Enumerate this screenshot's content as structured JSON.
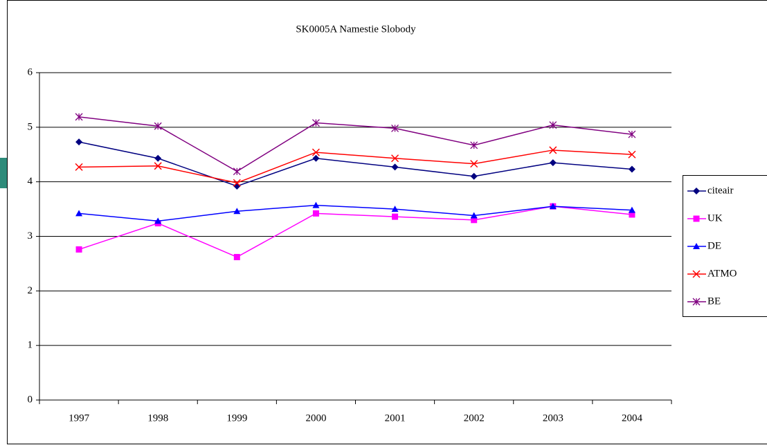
{
  "chart_data": {
    "type": "line",
    "title": "SK0005A Namestie Slobody",
    "categories": [
      "1997",
      "1998",
      "1999",
      "2000",
      "2001",
      "2002",
      "2003",
      "2004"
    ],
    "series": [
      {
        "name": "citeair",
        "color": "#000080",
        "marker": "diamond",
        "values": [
          4.73,
          4.43,
          3.92,
          4.43,
          4.27,
          4.1,
          4.35,
          4.23
        ]
      },
      {
        "name": "UK",
        "color": "#ff00ff",
        "marker": "square",
        "values": [
          2.76,
          3.24,
          2.62,
          3.42,
          3.36,
          3.3,
          3.55,
          3.4
        ]
      },
      {
        "name": "DE",
        "color": "#0000ff",
        "marker": "triangle",
        "values": [
          3.42,
          3.28,
          3.46,
          3.57,
          3.5,
          3.38,
          3.55,
          3.48
        ]
      },
      {
        "name": "ATMO",
        "color": "#ff0000",
        "marker": "x",
        "values": [
          4.27,
          4.29,
          3.98,
          4.54,
          4.43,
          4.33,
          4.58,
          4.5
        ]
      },
      {
        "name": "BE",
        "color": "#800080",
        "marker": "star",
        "values": [
          5.19,
          5.02,
          4.19,
          5.08,
          4.98,
          4.67,
          5.04,
          4.87
        ]
      }
    ],
    "ylim": [
      0,
      6
    ],
    "yticks": [
      0,
      1,
      2,
      3,
      4,
      5,
      6
    ],
    "grid": true,
    "legend": "right"
  }
}
